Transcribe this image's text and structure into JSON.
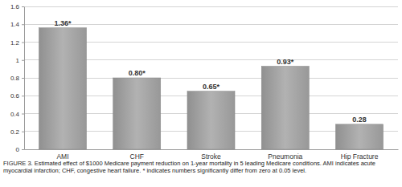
{
  "chart_data": {
    "type": "bar",
    "title": "FIGURE 3. Estimated effect of $1000 Medicare payment reduction on 1-year mortality in 5 leading Medicare conditions. AMI indicates acute myocardial infarction; CHF, congestive heart failure. * indicates numbers significantly differ from zero at 0.05 level.",
    "categories": [
      "AMI",
      "CHF",
      "Stroke",
      "Pneumonia",
      "Hip Fracture"
    ],
    "values": [
      1.36,
      0.8,
      0.65,
      0.93,
      0.28
    ],
    "value_labels": [
      "1.36*",
      "0.80*",
      "0.65*",
      "0.93*",
      "0.28"
    ],
    "data_labels": true,
    "color": "#a3a3a3",
    "ylim": [
      0,
      1.6
    ],
    "yticks": [
      0,
      0.2,
      0.4,
      0.6,
      0.8,
      1,
      1.2,
      1.4,
      1.6
    ],
    "grid": true
  }
}
